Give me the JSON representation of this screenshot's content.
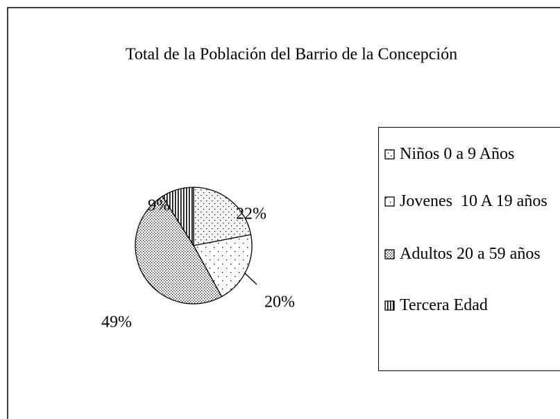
{
  "chart_data": {
    "type": "pie",
    "title": "Total de la Población del Barrio de la Concepción",
    "categories": [
      "Niños 0 a 9 Años",
      "Jovenes  10 A 19 años",
      "Adultos 20 a 59 años",
      "Tercera Edad"
    ],
    "values": [
      22,
      20,
      49,
      9
    ],
    "value_labels": [
      "22%",
      "20%",
      "49%",
      "9%"
    ],
    "legend": "right"
  }
}
